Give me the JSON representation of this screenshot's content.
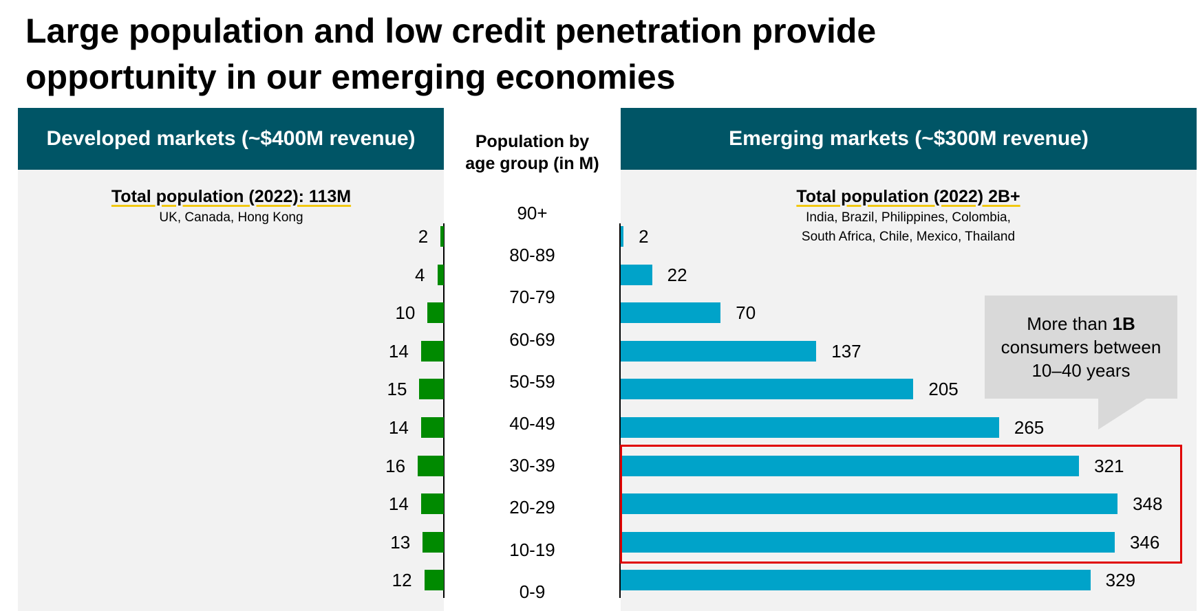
{
  "title_line1": "Large population and low credit penetration provide",
  "title_line2": "opportunity in our emerging economies",
  "developed": {
    "header": "Developed markets (~$400M revenue)",
    "total": "Total population (2022): 113M",
    "countries": "UK, Canada, Hong Kong"
  },
  "middle_header": {
    "line1": "Population by",
    "line2": "age group (in M)"
  },
  "emerging": {
    "header": "Emerging markets (~$300M revenue)",
    "total": "Total population (2022) 2B+",
    "countries1": "India, Brazil, Philippines, Colombia,",
    "countries2": "South Africa, Chile, Mexico, Thailand"
  },
  "callout": {
    "pre": "More than ",
    "bold": "1B",
    "rest": "consumers between 10–40 years"
  },
  "chart_data": {
    "type": "bar",
    "orientation": "horizontal-butterfly",
    "categories": [
      "90+",
      "80-89",
      "70-79",
      "60-69",
      "50-59",
      "40-49",
      "30-39",
      "20-29",
      "10-19",
      "0-9"
    ],
    "series": [
      {
        "name": "Developed markets (~$400M revenue)",
        "values": [
          2,
          4,
          10,
          14,
          15,
          14,
          16,
          14,
          13,
          12
        ],
        "color": "#008a00"
      },
      {
        "name": "Emerging markets (~$300M revenue)",
        "values": [
          2,
          22,
          70,
          137,
          205,
          265,
          321,
          348,
          346,
          329
        ],
        "color": "#00a3c9"
      }
    ],
    "highlighted_categories": [
      "30-39",
      "20-29",
      "10-19"
    ],
    "highlight_color": "#e00000",
    "unit": "M"
  }
}
